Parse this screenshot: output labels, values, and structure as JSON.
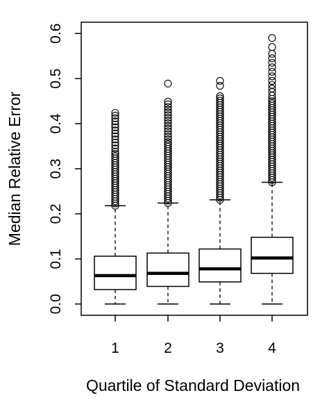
{
  "chart_data": {
    "type": "boxplot",
    "title": "",
    "xlabel": "Quartile of Standard Deviation",
    "ylabel": "Median Relative Error",
    "categories": [
      "1",
      "2",
      "3",
      "4"
    ],
    "ylim": [
      -0.025,
      0.625
    ],
    "yticks": [
      0.0,
      0.1,
      0.2,
      0.3,
      0.4,
      0.5,
      0.6
    ],
    "ytick_labels": [
      "0.0",
      "0.1",
      "0.2",
      "0.3",
      "0.4",
      "0.5",
      "0.6"
    ],
    "grid": false,
    "legend": "none",
    "boxes": [
      {
        "category": "1",
        "whisker_low": 0.0,
        "q1": 0.032,
        "median": 0.063,
        "q3": 0.106,
        "whisker_high": 0.218,
        "outliers": [
          0.218,
          0.223,
          0.228,
          0.233,
          0.238,
          0.243,
          0.248,
          0.253,
          0.258,
          0.263,
          0.268,
          0.273,
          0.278,
          0.283,
          0.288,
          0.293,
          0.298,
          0.303,
          0.308,
          0.313,
          0.318,
          0.323,
          0.328,
          0.333,
          0.338,
          0.345,
          0.352,
          0.358,
          0.365,
          0.372,
          0.378,
          0.385,
          0.392,
          0.398,
          0.405,
          0.412,
          0.418,
          0.424
        ]
      },
      {
        "category": "2",
        "whisker_low": 0.0,
        "q1": 0.039,
        "median": 0.068,
        "q3": 0.113,
        "whisker_high": 0.224,
        "outliers": [
          0.224,
          0.229,
          0.234,
          0.239,
          0.244,
          0.249,
          0.254,
          0.259,
          0.264,
          0.269,
          0.274,
          0.279,
          0.284,
          0.289,
          0.294,
          0.299,
          0.304,
          0.309,
          0.314,
          0.319,
          0.324,
          0.329,
          0.334,
          0.339,
          0.344,
          0.349,
          0.354,
          0.359,
          0.365,
          0.371,
          0.377,
          0.383,
          0.389,
          0.395,
          0.401,
          0.407,
          0.413,
          0.419,
          0.425,
          0.431,
          0.437,
          0.443,
          0.449,
          0.489
        ]
      },
      {
        "category": "3",
        "whisker_low": 0.0,
        "q1": 0.049,
        "median": 0.078,
        "q3": 0.122,
        "whisker_high": 0.231,
        "outliers": [
          0.231,
          0.236,
          0.241,
          0.246,
          0.251,
          0.256,
          0.261,
          0.266,
          0.271,
          0.276,
          0.281,
          0.286,
          0.291,
          0.296,
          0.301,
          0.306,
          0.311,
          0.316,
          0.321,
          0.326,
          0.331,
          0.336,
          0.341,
          0.346,
          0.351,
          0.356,
          0.361,
          0.366,
          0.371,
          0.376,
          0.381,
          0.386,
          0.391,
          0.396,
          0.401,
          0.406,
          0.411,
          0.416,
          0.421,
          0.426,
          0.431,
          0.436,
          0.441,
          0.446,
          0.451,
          0.456,
          0.461,
          0.484,
          0.495
        ]
      },
      {
        "category": "4",
        "whisker_low": 0.0,
        "q1": 0.068,
        "median": 0.102,
        "q3": 0.148,
        "whisker_high": 0.27,
        "outliers": [
          0.27,
          0.275,
          0.28,
          0.285,
          0.29,
          0.295,
          0.3,
          0.305,
          0.31,
          0.315,
          0.32,
          0.325,
          0.33,
          0.335,
          0.34,
          0.345,
          0.35,
          0.355,
          0.36,
          0.365,
          0.37,
          0.375,
          0.38,
          0.385,
          0.39,
          0.395,
          0.4,
          0.405,
          0.41,
          0.415,
          0.42,
          0.425,
          0.43,
          0.435,
          0.44,
          0.445,
          0.45,
          0.455,
          0.462,
          0.47,
          0.478,
          0.486,
          0.495,
          0.505,
          0.515,
          0.525,
          0.535,
          0.545,
          0.555,
          0.57,
          0.59
        ]
      }
    ]
  }
}
